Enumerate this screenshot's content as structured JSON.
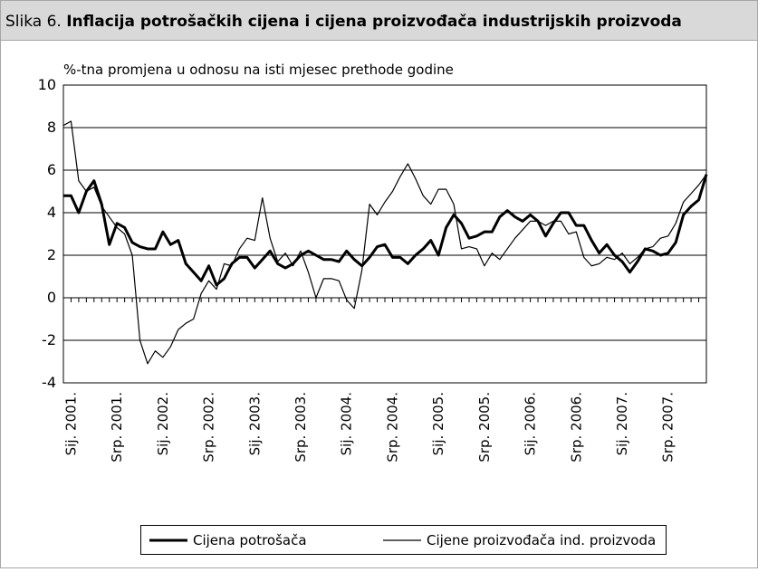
{
  "header": {
    "label": "Slika 6.",
    "title": "Inflacija potrošačkih cijena i cijena proizvođača industrijskih proizvoda"
  },
  "chart_data": {
    "type": "line",
    "ylabel": "%-tna promjena u odnosu na isti mjesec prethode godine",
    "categories": [
      null,
      "Sij. 2001.",
      null,
      null,
      null,
      null,
      null,
      "Srp. 2001.",
      null,
      null,
      null,
      null,
      null,
      "Sij. 2002.",
      null,
      null,
      null,
      null,
      null,
      "Srp. 2002.",
      null,
      null,
      null,
      null,
      null,
      "Sij. 2003.",
      null,
      null,
      null,
      null,
      null,
      "Srp. 2003.",
      null,
      null,
      null,
      null,
      null,
      "Sij. 2004.",
      null,
      null,
      null,
      null,
      null,
      "Srp. 2004.",
      null,
      null,
      null,
      null,
      null,
      "Sij. 2005.",
      null,
      null,
      null,
      null,
      null,
      "Srp. 2005.",
      null,
      null,
      null,
      null,
      null,
      "Sij. 2006.",
      null,
      null,
      null,
      null,
      null,
      "Srp. 2006.",
      null,
      null,
      null,
      null,
      null,
      "Sij. 2007.",
      null,
      null,
      null,
      null,
      null,
      "Srp. 2007.",
      null,
      null,
      null,
      null,
      null
    ],
    "series": [
      {
        "name": "Cijena potrošača",
        "color": "#000000",
        "width": 3,
        "values": [
          4.8,
          4.8,
          4.0,
          5.0,
          5.5,
          4.4,
          2.5,
          3.5,
          3.3,
          2.6,
          2.4,
          2.3,
          2.3,
          3.1,
          2.5,
          2.7,
          1.6,
          1.2,
          0.8,
          1.5,
          0.6,
          0.9,
          1.6,
          1.9,
          1.9,
          1.4,
          1.8,
          2.2,
          1.6,
          1.4,
          1.6,
          2.0,
          2.2,
          2.0,
          1.8,
          1.8,
          1.7,
          2.2,
          1.8,
          1.5,
          1.9,
          2.4,
          2.5,
          1.9,
          1.9,
          1.6,
          2.0,
          2.3,
          2.7,
          2.0,
          3.3,
          3.9,
          3.5,
          2.8,
          2.9,
          3.1,
          3.1,
          3.8,
          4.1,
          3.8,
          3.6,
          3.9,
          3.6,
          2.9,
          3.5,
          4.0,
          4.0,
          3.4,
          3.4,
          2.7,
          2.1,
          2.5,
          2.0,
          1.7,
          1.2,
          1.7,
          2.3,
          2.2,
          2.0,
          2.1,
          2.6,
          3.9,
          4.3,
          4.6,
          5.8
        ]
      },
      {
        "name": "Cijene proizvođača ind. proizvoda",
        "color": "#000000",
        "width": 1.2,
        "values": [
          8.1,
          8.3,
          5.5,
          5.0,
          5.2,
          4.3,
          3.8,
          3.3,
          3.0,
          2.0,
          -2.0,
          -3.1,
          -2.5,
          -2.8,
          -2.3,
          -1.5,
          -1.2,
          -1.0,
          0.2,
          0.8,
          0.4,
          1.6,
          1.5,
          2.3,
          2.8,
          2.7,
          4.7,
          2.8,
          1.7,
          2.1,
          1.5,
          2.2,
          1.2,
          0.0,
          0.9,
          0.9,
          0.8,
          -0.1,
          -0.5,
          1.3,
          4.4,
          3.9,
          4.5,
          5.0,
          5.7,
          6.3,
          5.6,
          4.8,
          4.4,
          5.1,
          5.1,
          4.4,
          2.3,
          2.4,
          2.3,
          1.5,
          2.1,
          1.8,
          2.3,
          2.8,
          3.2,
          3.6,
          3.6,
          3.4,
          3.6,
          3.6,
          3.0,
          3.1,
          1.9,
          1.5,
          1.6,
          1.9,
          1.8,
          2.1,
          1.6,
          1.9,
          2.3,
          2.4,
          2.8,
          2.9,
          3.5,
          4.5,
          4.9,
          5.3,
          5.8
        ]
      }
    ],
    "ylim": [
      -4,
      10
    ],
    "yticks": [
      -4,
      -2,
      0,
      2,
      4,
      6,
      8,
      10
    ],
    "grid": true
  }
}
